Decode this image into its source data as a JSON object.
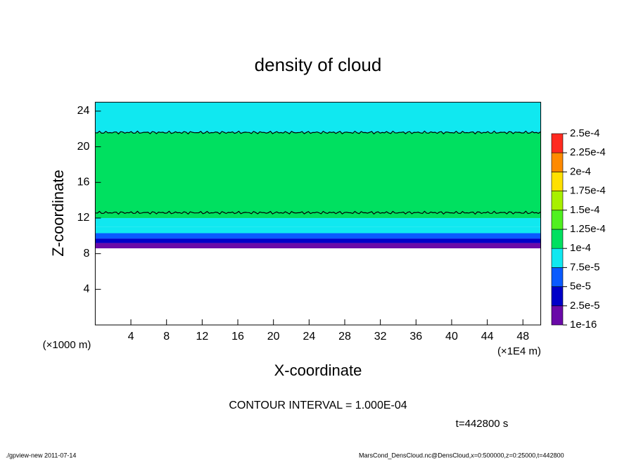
{
  "chart_data": {
    "type": "contour",
    "title": "density of cloud",
    "x_label": "X-coordinate",
    "y_label": "Z-coordinate",
    "x_unit": "(×1E4 m)",
    "y_unit": "(×1000 m)",
    "contour_interval": "CONTOUR INTERVAL = 1.000E-04",
    "time_label": "t=442800 s",
    "footer_left": "./gpview-new  2011-07-14",
    "footer_right": "MarsCond_DensCloud.nc@DensCloud,x=0:500000,z=0:25000,t=442800",
    "xlim": [
      0,
      50
    ],
    "xticks": [
      4,
      8,
      12,
      16,
      20,
      24,
      28,
      32,
      36,
      40,
      44,
      48
    ],
    "ylim": [
      0,
      25
    ],
    "yticks": [
      4,
      8,
      12,
      16,
      20,
      24
    ],
    "z_bins": [
      8.6,
      9.2,
      9.7,
      10.3,
      11.0,
      12.0,
      12.6,
      21.6,
      25
    ],
    "values": [
      1e-05,
      3.5e-05,
      6e-05,
      8e-05,
      9e-05,
      0.000105,
      0.00011,
      9e-05
    ],
    "contour_z": [
      12.6,
      21.6
    ],
    "colorbar_levels": [
      {
        "value": 1e-16,
        "label": "1e-16"
      },
      {
        "value": 2.5e-05,
        "label": "2.5e-5"
      },
      {
        "value": 5e-05,
        "label": "5e-5"
      },
      {
        "value": 7.5e-05,
        "label": "7.5e-5"
      },
      {
        "value": 0.0001,
        "label": "1e-4"
      },
      {
        "value": 0.000125,
        "label": "1.25e-4"
      },
      {
        "value": 0.00015,
        "label": "1.5e-4"
      },
      {
        "value": 0.000175,
        "label": "1.75e-4"
      },
      {
        "value": 0.0002,
        "label": "2e-4"
      },
      {
        "value": 0.000225,
        "label": "2.25e-4"
      },
      {
        "value": 0.00025,
        "label": "2.5e-4"
      }
    ],
    "colorbar_colors": [
      "#6a0aa8",
      "#0000c8",
      "#0a5aff",
      "#10e8f0",
      "#00e060",
      "#50f020",
      "#a8f000",
      "#ffe000",
      "#ff8a00",
      "#ff2a20"
    ]
  }
}
